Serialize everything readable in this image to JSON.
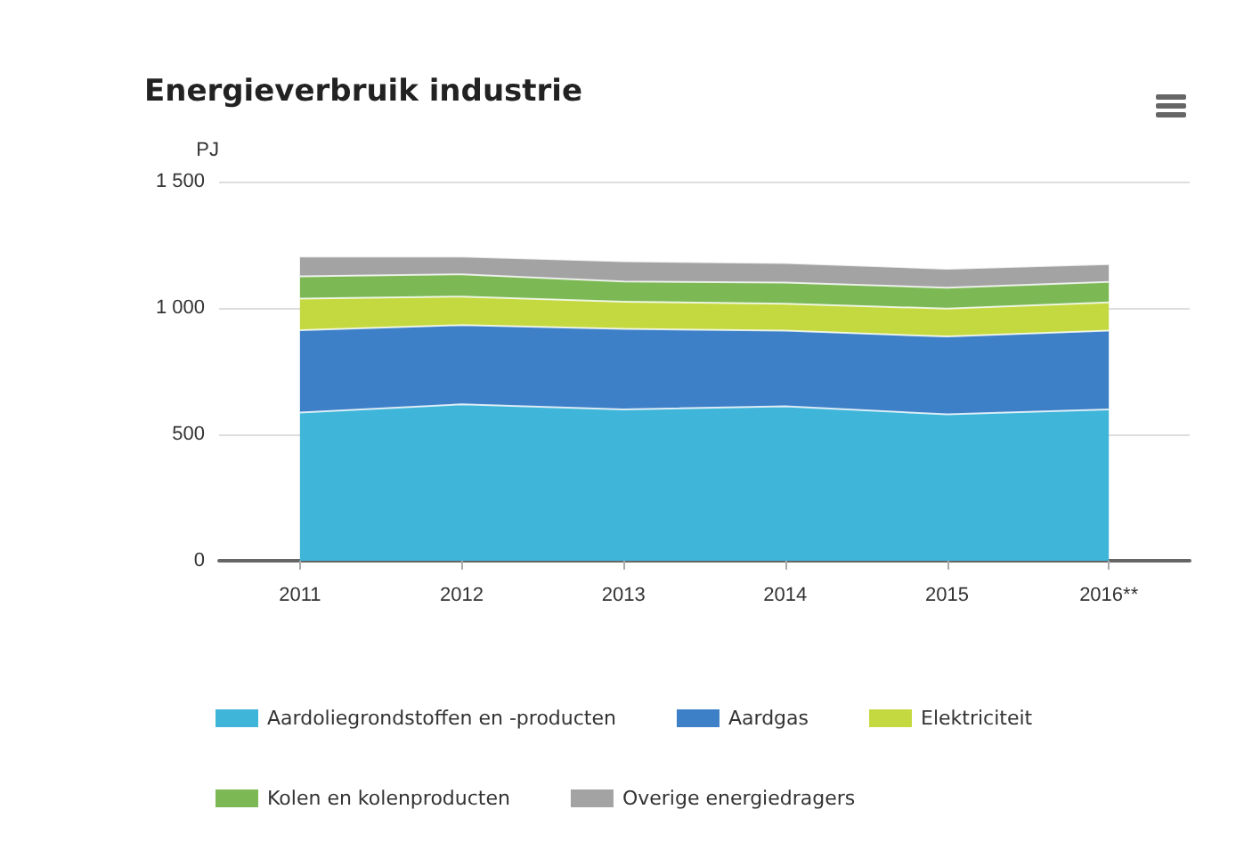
{
  "chart_data": {
    "type": "area",
    "stacked": true,
    "title": "Energieverbruik industrie",
    "ylabel": "PJ",
    "categories": [
      "2011",
      "2012",
      "2013",
      "2014",
      "2015",
      "2016**"
    ],
    "series": [
      {
        "name": "Aardoliegrondstoffen en -producten",
        "color": "#3fb5d9",
        "values": [
          586,
          619,
          599,
          611,
          579,
          599
        ]
      },
      {
        "name": "Aardgas",
        "color": "#3d80c7",
        "values": [
          326,
          313,
          318,
          299,
          308,
          311
        ]
      },
      {
        "name": "Elektriciteit",
        "color": "#c4d940",
        "values": [
          125,
          113,
          108,
          107,
          110,
          112
        ]
      },
      {
        "name": "Kolen en kolenproducten",
        "color": "#7cb955",
        "values": [
          88,
          88,
          80,
          83,
          83,
          81
        ]
      },
      {
        "name": "Overige energiedragers",
        "color": "#a3a3a3",
        "values": [
          78,
          70,
          80,
          78,
          75,
          70
        ]
      }
    ],
    "ylim": [
      0,
      1500
    ],
    "yticks": [
      0,
      500,
      {
        "value": 1000,
        "label": "1 000"
      },
      {
        "value": 1500,
        "label": "1 500"
      }
    ],
    "grid": "y",
    "legend": "bottom"
  }
}
